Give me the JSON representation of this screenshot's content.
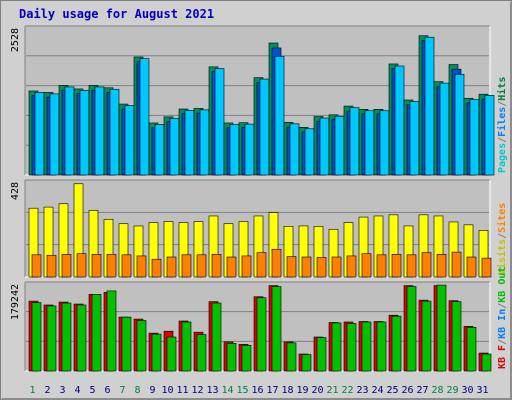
{
  "chart_data": {
    "type": "bar",
    "title": "Daily usage for August 2021",
    "categories": [
      "1",
      "2",
      "3",
      "4",
      "5",
      "6",
      "7",
      "8",
      "9",
      "10",
      "11",
      "12",
      "13",
      "14",
      "15",
      "16",
      "17",
      "18",
      "19",
      "20",
      "21",
      "22",
      "23",
      "24",
      "25",
      "26",
      "27",
      "28",
      "29",
      "30",
      "31"
    ],
    "weekend_days": [
      "1",
      "7",
      "8",
      "14",
      "15",
      "21",
      "22",
      "28",
      "29"
    ],
    "panels": [
      {
        "id": "top",
        "max_label": "2528",
        "ylim": [
          0,
          2528
        ],
        "legend": [
          {
            "text": "Pages",
            "color": "#00c8d0"
          },
          {
            "text": "/",
            "color": "#808080"
          },
          {
            "text": "Files",
            "color": "#0080ff"
          },
          {
            "text": "/",
            "color": "#808080"
          },
          {
            "text": "Hits",
            "color": "#008040"
          }
        ],
        "series": [
          {
            "name": "Hits",
            "color": "#009060",
            "values": [
              1445,
              1420,
              1540,
              1480,
              1540,
              1500,
              1220,
              2030,
              895,
              1000,
              1135,
              1145,
              1860,
              895,
              900,
              1675,
              2270,
              905,
              820,
              1005,
              1035,
              1185,
              1130,
              1130,
              1910,
              1290,
              2395,
              1605,
              1900,
              1320,
              1390
            ]
          },
          {
            "name": "Files",
            "color": "#0050d0",
            "values": [
              1365,
              1340,
              1460,
              1400,
              1460,
              1415,
              1135,
              1950,
              815,
              920,
              1055,
              1065,
              1780,
              815,
              820,
              1590,
              2185,
              825,
              740,
              925,
              955,
              1100,
              1050,
              1050,
              1830,
              1210,
              2315,
              1520,
              1820,
              1240,
              1305
            ]
          },
          {
            "name": "Pages",
            "color": "#00c8ff",
            "values": [
              1420,
              1395,
              1515,
              1455,
              1515,
              1475,
              1195,
              2000,
              870,
              975,
              1110,
              1120,
              1830,
              870,
              875,
              1650,
              2040,
              880,
              795,
              980,
              1010,
              1160,
              1105,
              1105,
              1875,
              1265,
              2370,
              1580,
              1730,
              1300,
              1370
            ]
          }
        ]
      },
      {
        "id": "middle",
        "max_label": "428",
        "ylim": [
          0,
          428
        ],
        "legend": [
          {
            "text": "Visits",
            "color": "#c0c000"
          },
          {
            "text": "/",
            "color": "#808080"
          },
          {
            "text": "Sites",
            "color": "#ff8000"
          }
        ],
        "series": [
          {
            "name": "Visits",
            "color": "#ffff00",
            "values": [
              310,
              315,
              330,
              420,
              300,
              260,
              240,
              230,
              245,
              250,
              245,
              250,
              275,
              240,
              250,
              275,
              290,
              228,
              230,
              228,
              215,
              245,
              270,
              275,
              280,
              230,
              280,
              275,
              248,
              235,
              210
            ]
          },
          {
            "name": "Sites",
            "color": "#ff8000",
            "values": [
              100,
              98,
              102,
              105,
              102,
              102,
              100,
              95,
              80,
              90,
              100,
              100,
              102,
              90,
              95,
              110,
              125,
              92,
              90,
              88,
              90,
              95,
              105,
              100,
              102,
              100,
              110,
              102,
              112,
              90,
              85
            ]
          }
        ]
      },
      {
        "id": "bottom",
        "max_label": "179242",
        "ylim": [
          0,
          179242
        ],
        "legend": [
          {
            "text": "KB F",
            "color": "#e00000"
          },
          {
            "text": "/",
            "color": "#808080"
          },
          {
            "text": "KB In",
            "color": "#0080ff"
          },
          {
            "text": "/",
            "color": "#808080"
          },
          {
            "text": "KB Out",
            "color": "#00c000"
          }
        ],
        "series": [
          {
            "name": "KB F",
            "color": "#e00000",
            "values": [
              144000,
              136000,
              142000,
              138000,
              158000,
              162000,
              111000,
              107000,
              78000,
              82000,
              103000,
              80000,
              143000,
              60000,
              55000,
              153000,
              176000,
              60000,
              35000,
              70000,
              100000,
              101000,
              102000,
              102000,
              115000,
              176000,
              146000,
              176000,
              145000,
              92000,
              37000
            ]
          },
          {
            "name": "KB Out",
            "color": "#00c000",
            "values": [
              141000,
              134000,
              140000,
              136000,
              158000,
              165000,
              111000,
              104000,
              76000,
              70000,
              101000,
              75000,
              140000,
              57000,
              53000,
              151000,
              174000,
              58000,
              34000,
              69000,
              99000,
              98000,
              101000,
              101000,
              113000,
              174000,
              144000,
              177000,
              143000,
              90000,
              35000
            ]
          }
        ]
      }
    ]
  }
}
